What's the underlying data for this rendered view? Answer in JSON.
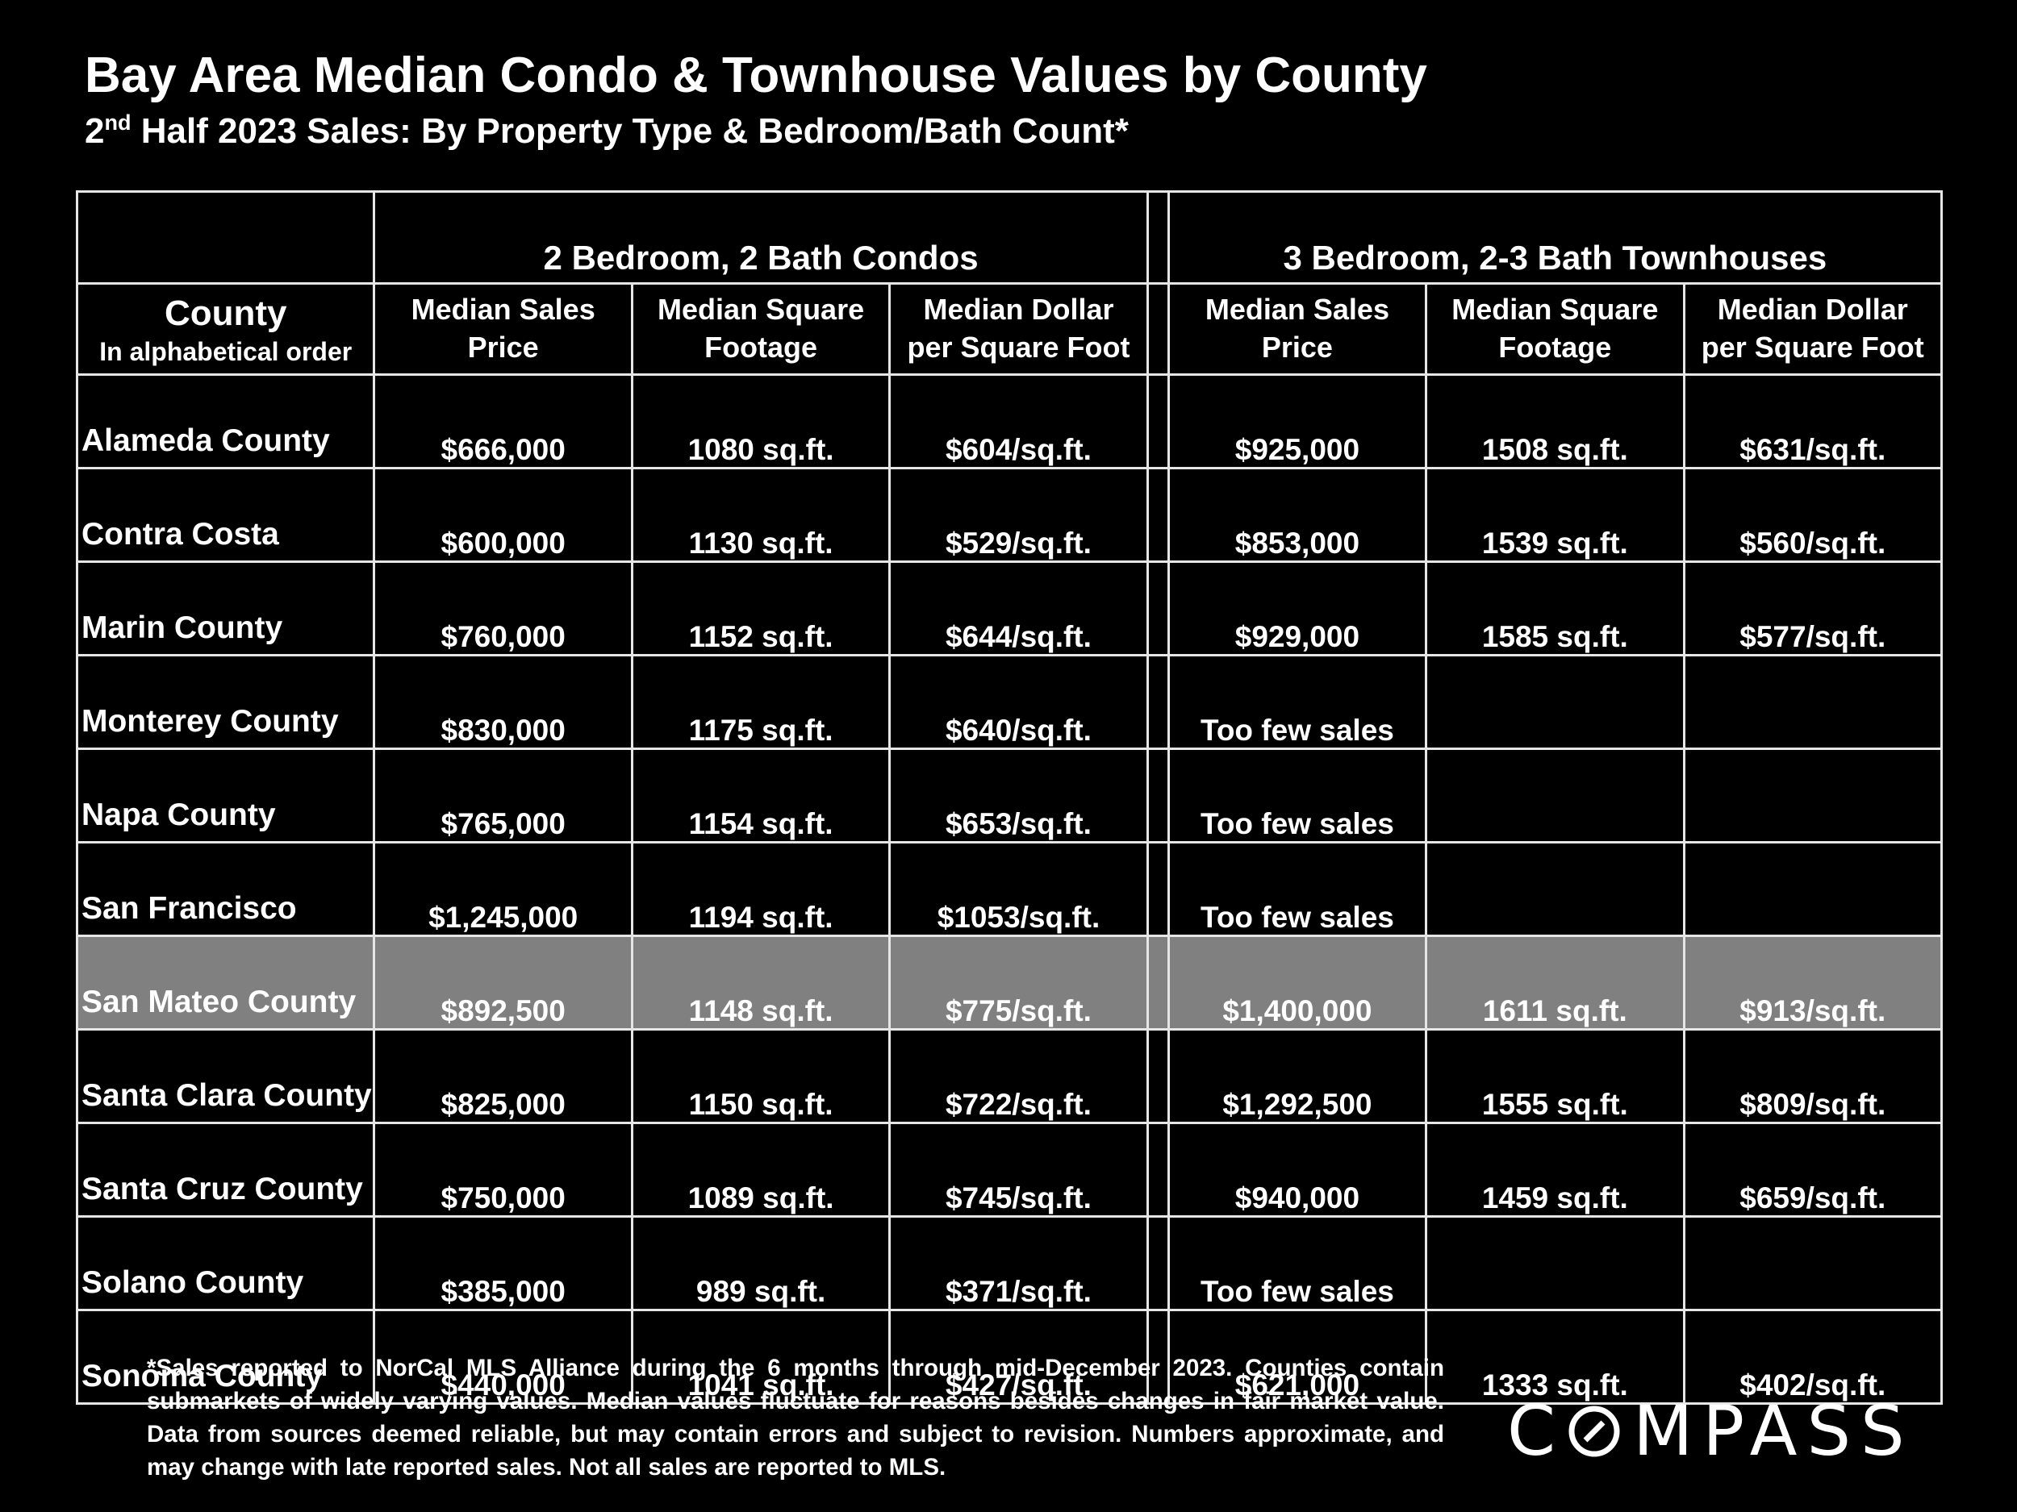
{
  "header": {
    "title": "Bay Area Median Condo & Townhouse Values by County",
    "subtitle_ordinal": "2",
    "subtitle_sup": "nd",
    "subtitle_rest": " Half 2023 Sales:  By Property Type & Bedroom/Bath Count*"
  },
  "table": {
    "groups": [
      "2 Bedroom, 2 Bath Condos",
      "3 Bedroom, 2-3 Bath Townhouses"
    ],
    "county_header": "County",
    "county_subheader": "In alphabetical order",
    "columns": [
      {
        "line1": "Median Sales",
        "line2": "Price"
      },
      {
        "line1": "Median Square",
        "line2": "Footage"
      },
      {
        "line1": "Median Dollar",
        "line2": "per Square Foot"
      },
      {
        "line1": "Median Sales",
        "line2": "Price"
      },
      {
        "line1": "Median Square",
        "line2": "Footage"
      },
      {
        "line1": "Median Dollar",
        "line2": "per Square Foot"
      }
    ],
    "rows": [
      {
        "county": "Alameda County",
        "condo": [
          "$666,000",
          "1080 sq.ft.",
          "$604/sq.ft."
        ],
        "town": [
          "$925,000",
          "1508 sq.ft.",
          "$631/sq.ft."
        ],
        "highlight": false
      },
      {
        "county": "Contra Costa",
        "condo": [
          "$600,000",
          "1130 sq.ft.",
          "$529/sq.ft."
        ],
        "town": [
          "$853,000",
          "1539 sq.ft.",
          "$560/sq.ft."
        ],
        "highlight": false
      },
      {
        "county": "Marin County",
        "condo": [
          "$760,000",
          "1152 sq.ft.",
          "$644/sq.ft."
        ],
        "town": [
          "$929,000",
          "1585 sq.ft.",
          "$577/sq.ft."
        ],
        "highlight": false
      },
      {
        "county": "Monterey County",
        "condo": [
          "$830,000",
          "1175 sq.ft.",
          "$640/sq.ft."
        ],
        "town": [
          "Too few sales",
          "",
          ""
        ],
        "highlight": false
      },
      {
        "county": "Napa County",
        "condo": [
          "$765,000",
          "1154 sq.ft.",
          "$653/sq.ft."
        ],
        "town": [
          "Too few sales",
          "",
          ""
        ],
        "highlight": false
      },
      {
        "county": "San Francisco",
        "condo": [
          "$1,245,000",
          "1194 sq.ft.",
          "$1053/sq.ft."
        ],
        "town": [
          "Too few sales",
          "",
          ""
        ],
        "highlight": false
      },
      {
        "county": "San Mateo County",
        "condo": [
          "$892,500",
          "1148 sq.ft.",
          "$775/sq.ft."
        ],
        "town": [
          "$1,400,000",
          "1611 sq.ft.",
          "$913/sq.ft."
        ],
        "highlight": true
      },
      {
        "county": "Santa Clara County",
        "condo": [
          "$825,000",
          "1150 sq.ft.",
          "$722/sq.ft."
        ],
        "town": [
          "$1,292,500",
          "1555 sq.ft.",
          "$809/sq.ft."
        ],
        "highlight": false
      },
      {
        "county": "Santa Cruz County",
        "condo": [
          "$750,000",
          "1089 sq.ft.",
          "$745/sq.ft."
        ],
        "town": [
          "$940,000",
          "1459 sq.ft.",
          "$659/sq.ft."
        ],
        "highlight": false
      },
      {
        "county": "Solano County",
        "condo": [
          "$385,000",
          "989 sq.ft.",
          "$371/sq.ft."
        ],
        "town": [
          "Too few sales",
          "",
          ""
        ],
        "highlight": false
      },
      {
        "county": "Sonoma County",
        "condo": [
          "$440,000",
          "1041 sq.ft.",
          "$427/sq.ft."
        ],
        "town": [
          "$621,000",
          "1333 sq.ft.",
          "$402/sq.ft."
        ],
        "highlight": false
      }
    ]
  },
  "footnote": "*Sales reported to NorCal MLS Alliance during the 6 months through mid-December 2023. Counties contain submarkets of widely varying values. Median values fluctuate for reasons besides changes in fair market value. Data from sources deemed reliable, but may contain errors and subject to revision.  Numbers approximate, and may change with late reported sales. Not all sales are reported to MLS.",
  "logo": {
    "text": "COMPASS",
    "before": "C",
    "after": "MPASS",
    "icon": "compass-o-icon"
  },
  "colors": {
    "background": "#000000",
    "text": "#ffffff",
    "highlight_row": "#808080",
    "grid": "#e6e6e6"
  }
}
